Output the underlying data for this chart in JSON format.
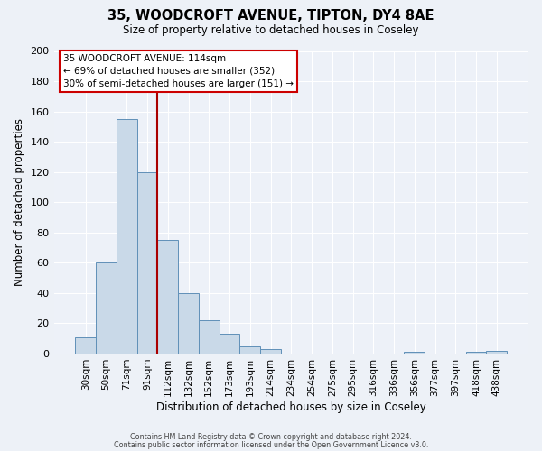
{
  "title": "35, WOODCROFT AVENUE, TIPTON, DY4 8AE",
  "subtitle": "Size of property relative to detached houses in Coseley",
  "xlabel": "Distribution of detached houses by size in Coseley",
  "ylabel": "Number of detached properties",
  "bin_labels": [
    "30sqm",
    "50sqm",
    "71sqm",
    "91sqm",
    "112sqm",
    "132sqm",
    "152sqm",
    "173sqm",
    "193sqm",
    "214sqm",
    "234sqm",
    "254sqm",
    "275sqm",
    "295sqm",
    "316sqm",
    "336sqm",
    "356sqm",
    "377sqm",
    "397sqm",
    "418sqm",
    "438sqm"
  ],
  "bar_heights": [
    11,
    60,
    155,
    120,
    75,
    40,
    22,
    13,
    5,
    3,
    0,
    0,
    0,
    0,
    0,
    0,
    1,
    0,
    0,
    1,
    2
  ],
  "bar_color": "#c9d9e8",
  "bar_edge_color": "#6090b8",
  "ylim": [
    0,
    200
  ],
  "yticks": [
    0,
    20,
    40,
    60,
    80,
    100,
    120,
    140,
    160,
    180,
    200
  ],
  "vline_after_bin": 3,
  "vline_color": "#aa0000",
  "annotation_title": "35 WOODCROFT AVENUE: 114sqm",
  "annotation_line1": "← 69% of detached houses are smaller (352)",
  "annotation_line2": "30% of semi-detached houses are larger (151) →",
  "box_edge_color": "#cc0000",
  "footer1": "Contains HM Land Registry data © Crown copyright and database right 2024.",
  "footer2": "Contains public sector information licensed under the Open Government Licence v3.0.",
  "bg_color": "#edf1f7",
  "plot_bg_color": "#edf1f8"
}
